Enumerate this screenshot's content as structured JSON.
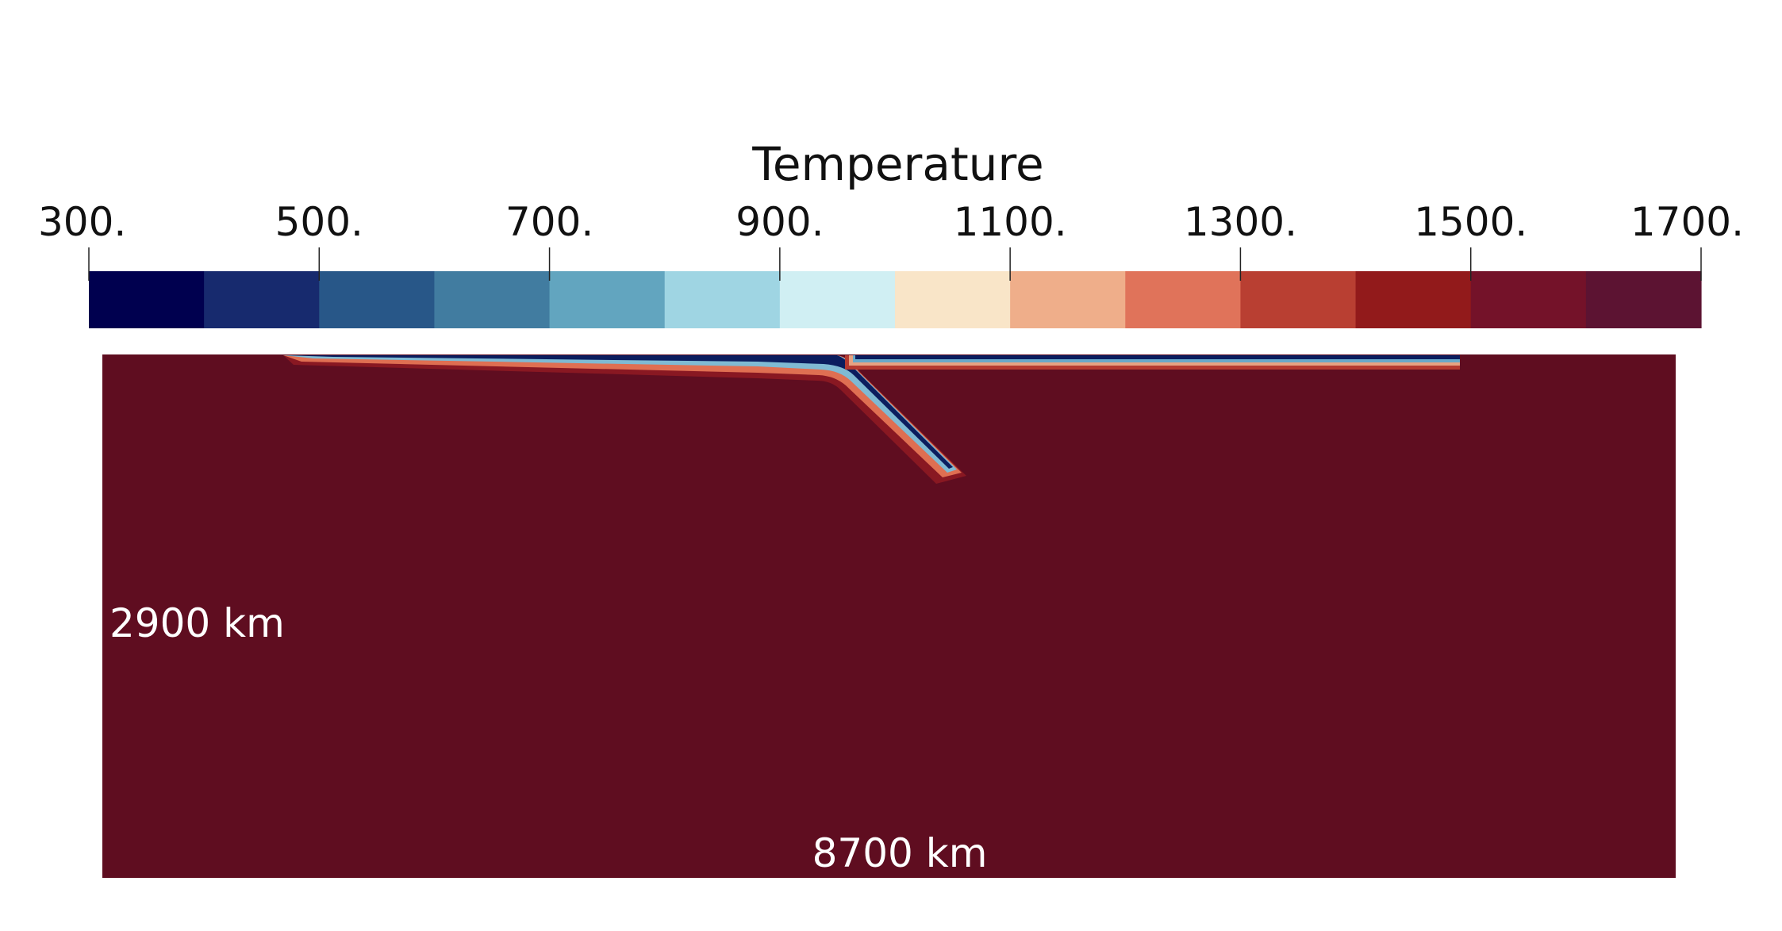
{
  "colorbar": {
    "title": "Temperature",
    "ticks": [
      "300.",
      "500.",
      "700.",
      "900.",
      "1100.",
      "1300.",
      "1500.",
      "1700."
    ],
    "colors": [
      "#00004f",
      "#172a6e",
      "#285788",
      "#417ca0",
      "#62a5bf",
      "#9fd5e3",
      "#d0eff3",
      "#f9e5c8",
      "#efae8a",
      "#e0735a",
      "#b93f32",
      "#921a1b",
      "#741229",
      "#5c1332"
    ]
  },
  "model": {
    "background_color": "#5f0d20",
    "depth_label": "2900 km",
    "width_label": "8700 km"
  }
}
